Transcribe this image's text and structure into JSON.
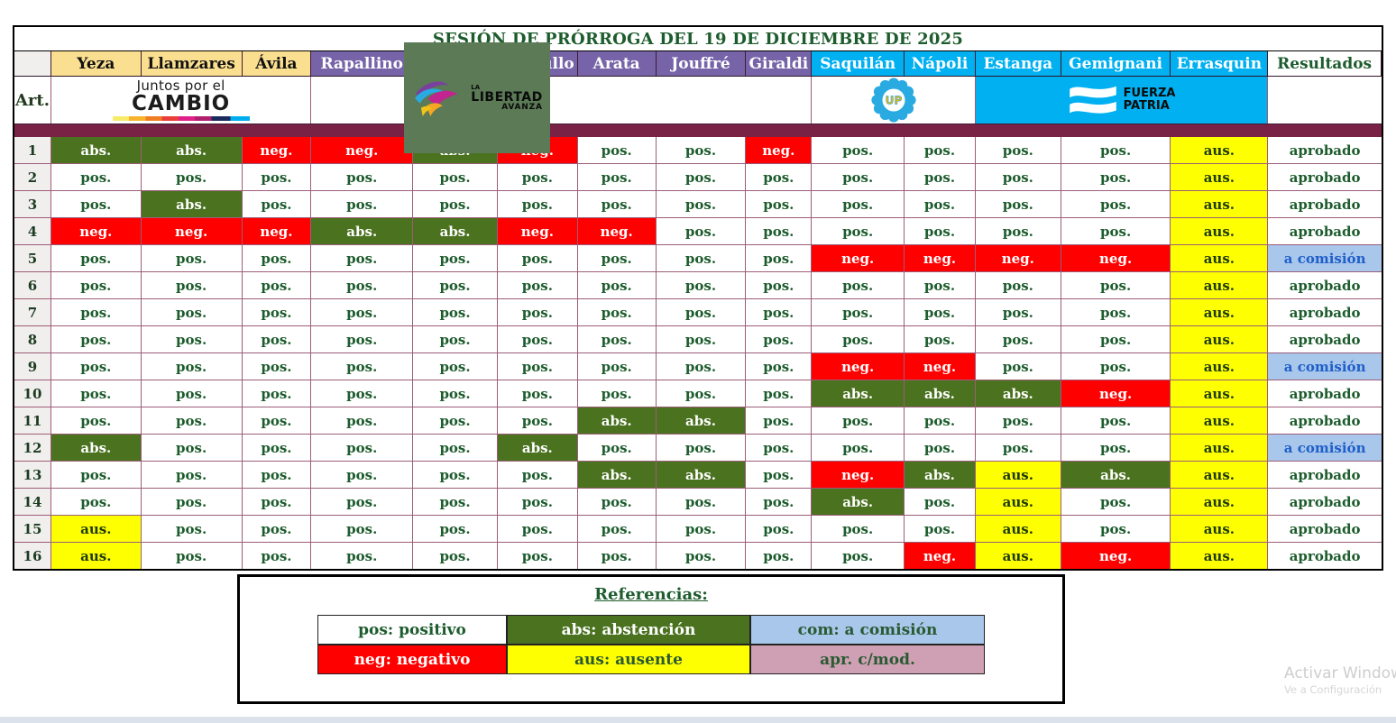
{
  "title": "SESIÓN DE PRÓRROGA DEL 19 DE DICIEMBRE DE 2025",
  "columns": {
    "art_label": "Art.",
    "results_label": "Resultados",
    "members": [
      {
        "name": "Yeza",
        "group": "jxc"
      },
      {
        "name": "Llamzares",
        "group": "jxc"
      },
      {
        "name": "Ávila",
        "group": "jxc"
      },
      {
        "name": "Rapallino",
        "group": "lla"
      },
      {
        "name": "",
        "group": "lla"
      },
      {
        "name": "ullo",
        "group": "lla",
        "clipped": true
      },
      {
        "name": "Arata",
        "group": "lla"
      },
      {
        "name": "Jouffré",
        "group": "lla"
      },
      {
        "name": "Giraldi",
        "group": "lla"
      },
      {
        "name": "Saquilán",
        "group": "up"
      },
      {
        "name": "Nápoli",
        "group": "up"
      },
      {
        "name": "Estanga",
        "group": "fp"
      },
      {
        "name": "Gemignani",
        "group": "fp"
      },
      {
        "name": "Errasquin",
        "group": "fp"
      }
    ]
  },
  "groups": {
    "jxc": {
      "line1": "Juntos por el",
      "line2": "CAMBIO"
    },
    "lla": {
      "line1": "LA",
      "line2": "LIBERTAD",
      "line3": "AVANZA"
    },
    "up": {
      "label": "UP"
    },
    "fp": {
      "line1": "FUERZA",
      "line2": "PATRIA"
    }
  },
  "vote_labels": {
    "pos": "pos.",
    "neg": "neg.",
    "abs": "abs.",
    "aus": "aus."
  },
  "result_labels": {
    "aprobado": "aprobado",
    "comision": "a comisión"
  },
  "rows": [
    {
      "art": "1",
      "votes": [
        "abs",
        "abs",
        "neg",
        "neg",
        "abs",
        "neg",
        "pos",
        "pos",
        "neg",
        "pos",
        "pos",
        "pos",
        "pos",
        "aus"
      ],
      "result": "aprobado"
    },
    {
      "art": "2",
      "votes": [
        "pos",
        "pos",
        "pos",
        "pos",
        "pos",
        "pos",
        "pos",
        "pos",
        "pos",
        "pos",
        "pos",
        "pos",
        "pos",
        "aus"
      ],
      "result": "aprobado"
    },
    {
      "art": "3",
      "votes": [
        "pos",
        "abs",
        "pos",
        "pos",
        "pos",
        "pos",
        "pos",
        "pos",
        "pos",
        "pos",
        "pos",
        "pos",
        "pos",
        "aus"
      ],
      "result": "aprobado"
    },
    {
      "art": "4",
      "votes": [
        "neg",
        "neg",
        "neg",
        "abs",
        "abs",
        "neg",
        "neg",
        "pos",
        "pos",
        "pos",
        "pos",
        "pos",
        "pos",
        "aus"
      ],
      "result": "aprobado"
    },
    {
      "art": "5",
      "votes": [
        "pos",
        "pos",
        "pos",
        "pos",
        "pos",
        "pos",
        "pos",
        "pos",
        "pos",
        "neg",
        "neg",
        "neg",
        "neg",
        "aus"
      ],
      "result": "comision"
    },
    {
      "art": "6",
      "votes": [
        "pos",
        "pos",
        "pos",
        "pos",
        "pos",
        "pos",
        "pos",
        "pos",
        "pos",
        "pos",
        "pos",
        "pos",
        "pos",
        "aus"
      ],
      "result": "aprobado"
    },
    {
      "art": "7",
      "votes": [
        "pos",
        "pos",
        "pos",
        "pos",
        "pos",
        "pos",
        "pos",
        "pos",
        "pos",
        "pos",
        "pos",
        "pos",
        "pos",
        "aus"
      ],
      "result": "aprobado"
    },
    {
      "art": "8",
      "votes": [
        "pos",
        "pos",
        "pos",
        "pos",
        "pos",
        "pos",
        "pos",
        "pos",
        "pos",
        "pos",
        "pos",
        "pos",
        "pos",
        "aus"
      ],
      "result": "aprobado"
    },
    {
      "art": "9",
      "votes": [
        "pos",
        "pos",
        "pos",
        "pos",
        "pos",
        "pos",
        "pos",
        "pos",
        "pos",
        "neg",
        "neg",
        "pos",
        "pos",
        "aus"
      ],
      "result": "comision"
    },
    {
      "art": "10",
      "votes": [
        "pos",
        "pos",
        "pos",
        "pos",
        "pos",
        "pos",
        "pos",
        "pos",
        "pos",
        "abs",
        "abs",
        "abs",
        "neg",
        "aus"
      ],
      "result": "aprobado"
    },
    {
      "art": "11",
      "votes": [
        "pos",
        "pos",
        "pos",
        "pos",
        "pos",
        "pos",
        "abs",
        "abs",
        "pos",
        "pos",
        "pos",
        "pos",
        "pos",
        "aus"
      ],
      "result": "aprobado"
    },
    {
      "art": "12",
      "votes": [
        "abs",
        "pos",
        "pos",
        "pos",
        "pos",
        "abs",
        "pos",
        "pos",
        "pos",
        "pos",
        "pos",
        "pos",
        "pos",
        "aus"
      ],
      "result": "comision"
    },
    {
      "art": "13",
      "votes": [
        "pos",
        "pos",
        "pos",
        "pos",
        "pos",
        "pos",
        "abs",
        "abs",
        "pos",
        "neg",
        "abs",
        "aus",
        "abs",
        "aus"
      ],
      "result": "aprobado"
    },
    {
      "art": "14",
      "votes": [
        "pos",
        "pos",
        "pos",
        "pos",
        "pos",
        "pos",
        "pos",
        "pos",
        "pos",
        "abs",
        "pos",
        "aus",
        "pos",
        "aus"
      ],
      "result": "aprobado"
    },
    {
      "art": "15",
      "votes": [
        "aus",
        "pos",
        "pos",
        "pos",
        "pos",
        "pos",
        "pos",
        "pos",
        "pos",
        "pos",
        "pos",
        "aus",
        "pos",
        "aus"
      ],
      "result": "aprobado"
    },
    {
      "art": "16",
      "votes": [
        "aus",
        "pos",
        "pos",
        "pos",
        "pos",
        "pos",
        "pos",
        "pos",
        "pos",
        "pos",
        "neg",
        "aus",
        "neg",
        "aus"
      ],
      "result": "aprobado"
    }
  ],
  "legend": {
    "title": "Referencias:",
    "items": [
      {
        "text": "pos: positivo",
        "type": "pos"
      },
      {
        "text": "abs: abstención",
        "type": "abs"
      },
      {
        "text": "com: a comisión",
        "type": "com"
      },
      {
        "text": "neg: negativo",
        "type": "neg"
      },
      {
        "text": "aus: ausente",
        "type": "aus"
      },
      {
        "text": "apr. c/mod.",
        "type": "apr"
      }
    ]
  },
  "watermark": {
    "line1": "Activar Windows",
    "line2": "Ve a Configuración"
  },
  "colors": {
    "header_jxc": "#fbdf90",
    "header_lla": "#7764a8",
    "header_up_fp": "#00b0f0",
    "positive_text": "#1d5c2d",
    "negative_bg": "#fe0000",
    "abstention_bg": "#4a721f",
    "absent_bg": "#feff00",
    "comision_bg": "#a9c6eb",
    "comision_text": "#1e5fc9",
    "apr_mod_bg": "#cfa0b4",
    "separator_bar": "#7a2146",
    "lla_box_bg": "#5b7a55"
  }
}
